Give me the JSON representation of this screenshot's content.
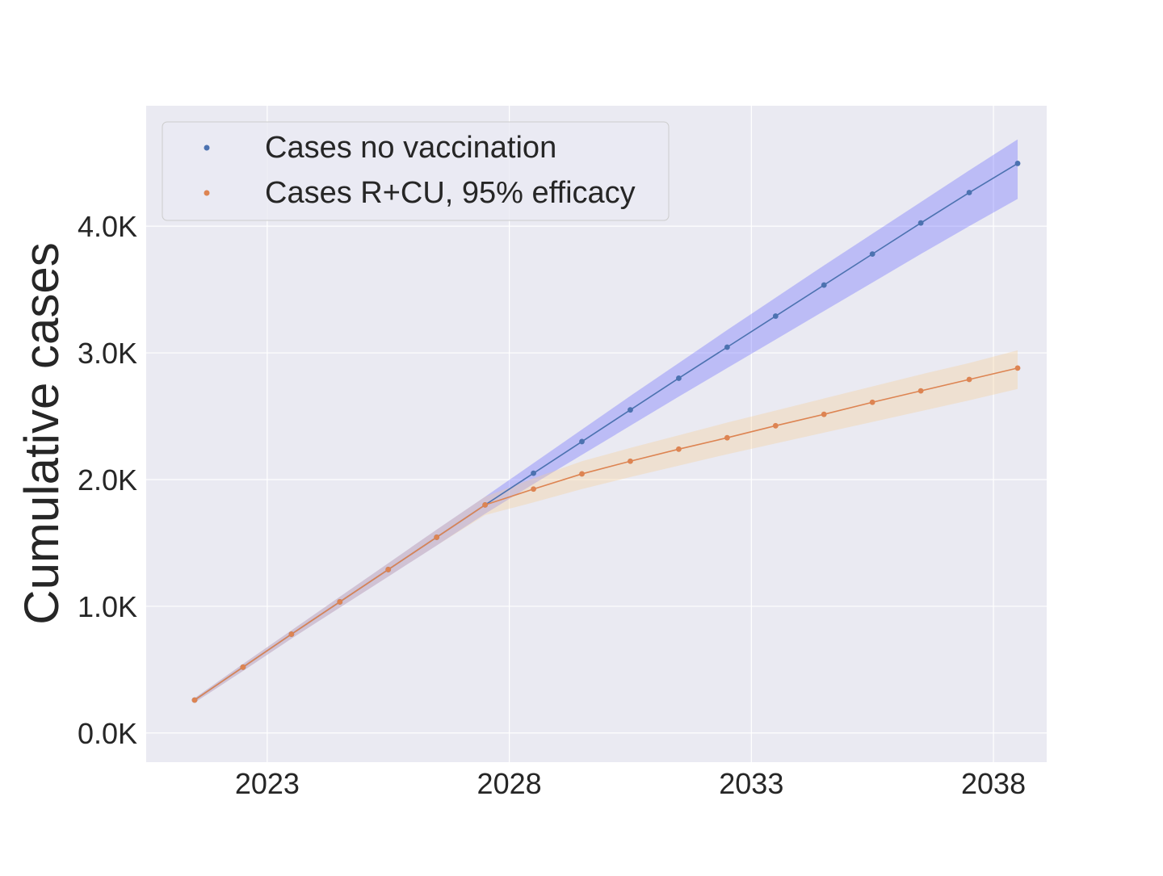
{
  "chart_data": {
    "type": "line",
    "title": "",
    "xlabel": "",
    "ylabel": "Cumulative cases",
    "x": [
      2021.5,
      2022.5,
      2023.5,
      2024.5,
      2025.5,
      2026.5,
      2027.5,
      2028.5,
      2029.5,
      2030.5,
      2031.5,
      2032.5,
      2033.5,
      2034.5,
      2035.5,
      2036.5,
      2037.5,
      2038.5
    ],
    "series": [
      {
        "name": "Cases no vaccination",
        "values": [
          260,
          520,
          780,
          1035,
          1290,
          1545,
          1800,
          2050,
          2300,
          2550,
          2800,
          3045,
          3290,
          3535,
          3780,
          4025,
          4265,
          4495
        ],
        "band_low": [
          240,
          490,
          745,
          990,
          1235,
          1480,
          1730,
          1965,
          2195,
          2425,
          2655,
          2880,
          3105,
          3330,
          3555,
          3780,
          4000,
          4215
        ],
        "band_high": [
          275,
          545,
          810,
          1075,
          1340,
          1605,
          1865,
          2130,
          2395,
          2660,
          2920,
          3180,
          3435,
          3690,
          3940,
          4190,
          4440,
          4685
        ],
        "color": "#4c72b0",
        "band_color": "#6666ff"
      },
      {
        "name": "Cases R+CU, 95% efficacy",
        "values": [
          260,
          520,
          780,
          1035,
          1290,
          1545,
          1800,
          1925,
          2045,
          2145,
          2240,
          2330,
          2425,
          2515,
          2610,
          2700,
          2790,
          2880
        ],
        "band_low": [
          240,
          490,
          745,
          990,
          1235,
          1480,
          1720,
          1820,
          1925,
          2020,
          2110,
          2200,
          2285,
          2370,
          2455,
          2540,
          2625,
          2715
        ],
        "band_high": [
          275,
          545,
          810,
          1075,
          1340,
          1605,
          1865,
          2010,
          2145,
          2250,
          2350,
          2450,
          2545,
          2640,
          2735,
          2830,
          2920,
          3020
        ],
        "color": "#dd8452",
        "band_color": "#f5cf96"
      }
    ],
    "xlim": [
      2020.5,
      2039.1
    ],
    "ylim": [
      -230,
      4950
    ],
    "xticks": [
      2023,
      2028,
      2033,
      2038
    ],
    "xtick_labels": [
      "2023",
      "2028",
      "2033",
      "2038"
    ],
    "yticks": [
      0,
      1000,
      2000,
      3000,
      4000
    ],
    "ytick_labels": [
      "0.0K",
      "1.0K",
      "2.0K",
      "3.0K",
      "4.0K"
    ],
    "grid": true,
    "legend_position": "top-left",
    "background_color": "#eaeaf2"
  }
}
